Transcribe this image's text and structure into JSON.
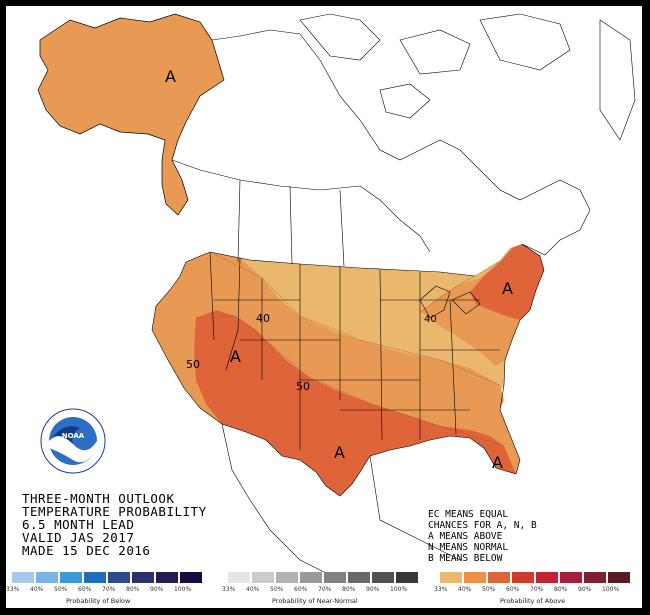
{
  "title_lines": [
    "THREE-MONTH OUTLOOK",
    "TEMPERATURE PROBABILITY",
    "6.5 MONTH LEAD",
    "VALID JAS 2017",
    "MADE 15 DEC 2016"
  ],
  "key_lines": [
    "EC MEANS EQUAL",
    "CHANCES FOR A, N, B",
    "A MEANS ABOVE",
    "N MEANS NORMAL",
    "B MEANS BELOW"
  ],
  "map_labels": {
    "alaska_a": "A",
    "west_a": "A",
    "south_a": "A",
    "northeast_a": "A",
    "southeast_a": "A",
    "contour_40": "40",
    "contour_50_west": "50",
    "contour_50_central": "50",
    "contour_40_east": "40"
  },
  "legend": {
    "below": {
      "caption": "Probability of Below",
      "ticks": [
        "33%",
        "40%",
        "50%",
        "60%",
        "70%",
        "80%",
        "90%",
        "100%"
      ],
      "colors": [
        "#a7c8ea",
        "#7ab4e4",
        "#3d98d6",
        "#1f6eb8",
        "#2b4b8c",
        "#2e2f6d",
        "#251c55",
        "#170c3d"
      ]
    },
    "normal": {
      "caption": "Probability of Near-Normal",
      "ticks": [
        "33%",
        "40%",
        "50%",
        "60%",
        "70%",
        "80%",
        "90%",
        "100%"
      ],
      "colors": [
        "#e8e3e6",
        "#cfc9cd",
        "#b6b0b4",
        "#9c979a",
        "#838083",
        "#6b6869",
        "#525052",
        "#3a393a"
      ]
    },
    "above": {
      "caption": "Probability of Above",
      "ticks": [
        "33%",
        "40%",
        "50%",
        "60%",
        "70%",
        "80%",
        "90%",
        "100%"
      ],
      "colors": [
        "#e9b86d",
        "#ef8e47",
        "#e0643a",
        "#d33a2e",
        "#c22236",
        "#a51f3c",
        "#7e2033",
        "#5a1a22"
      ]
    }
  },
  "colors": {
    "above_33_40": "#e9b86d",
    "above_40_50": "#e89a55",
    "above_50_60": "#e0643a",
    "above_60_70": "#d33a2e"
  },
  "logo": {
    "text": "NOAA"
  }
}
